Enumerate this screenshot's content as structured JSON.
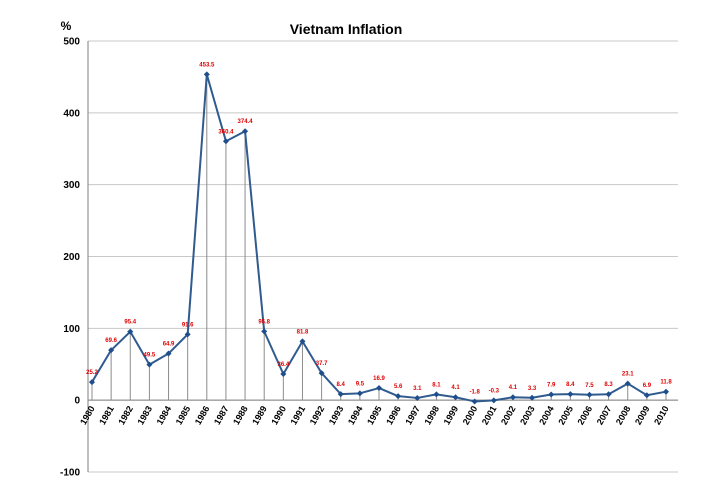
{
  "chart_data": {
    "type": "line",
    "title": "Vietnam Inflation",
    "ylabel": "%",
    "xlabel": "",
    "ylim": [
      -100,
      500
    ],
    "yticks": [
      -100,
      0,
      100,
      200,
      300,
      400,
      500
    ],
    "grid": true,
    "legend": "none",
    "colors": {
      "line": "#2f5b8f",
      "marker": "#1f4e8c",
      "label": "#e00000"
    },
    "categories": [
      "1980",
      "1981",
      "1982",
      "1983",
      "1984",
      "1985",
      "1986",
      "1987",
      "1988",
      "1989",
      "1990",
      "1991",
      "1992",
      "1993",
      "1994",
      "1995",
      "1996",
      "1997",
      "1998",
      "1999",
      "2000",
      "2001",
      "2002",
      "2003",
      "2004",
      "2005",
      "2006",
      "2007",
      "2008",
      "2009",
      "2010"
    ],
    "values": [
      25.2,
      69.6,
      95.4,
      49.5,
      64.9,
      91.6,
      453.5,
      360.4,
      374.4,
      95.8,
      36.4,
      81.8,
      37.7,
      8.4,
      9.5,
      16.9,
      5.6,
      3.1,
      8.1,
      4.1,
      -1.8,
      -0.3,
      4.1,
      3.3,
      7.9,
      8.4,
      7.5,
      8.3,
      23.1,
      6.9,
      11.8
    ],
    "labels": [
      "25.2",
      "69.6",
      "95.4",
      "49.5",
      "64.9",
      "91.6",
      "453.5",
      "360.4",
      "374.4",
      "95.8",
      "36.4",
      "81.8",
      "37.7",
      "8.4",
      "9.5",
      "16.9",
      "5.6",
      "3.1",
      "8.1",
      "4.1",
      "-1.8",
      "-0.3",
      "4.1",
      "3.3",
      "7.9",
      "8.4",
      "7.5",
      "8.3",
      "23.1",
      "6.9",
      "11.8"
    ]
  }
}
